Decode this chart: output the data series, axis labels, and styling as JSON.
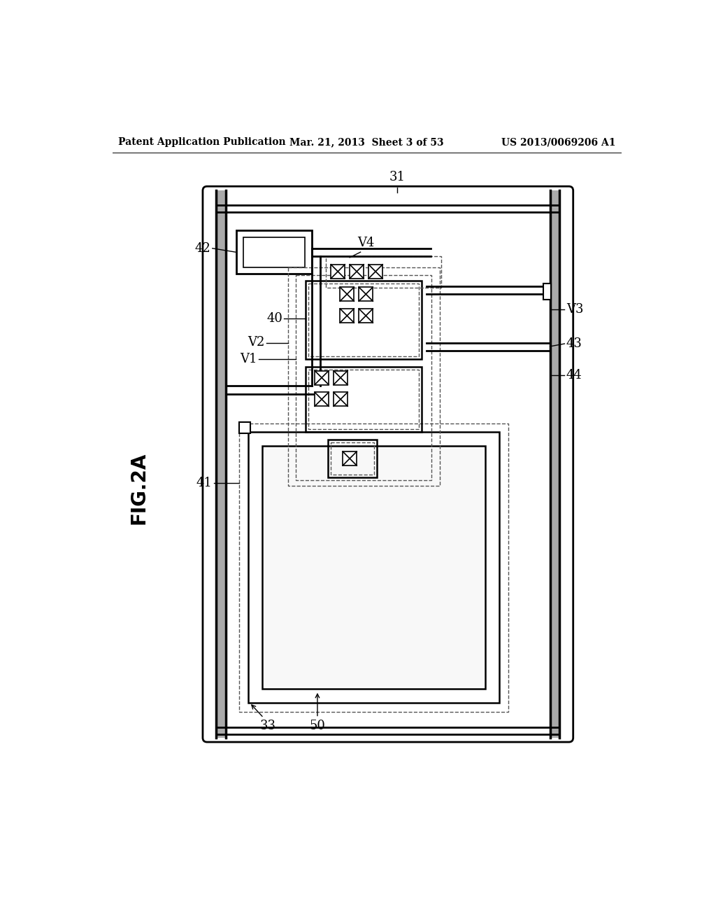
{
  "header_left": "Patent Application Publication",
  "header_mid": "Mar. 21, 2013  Sheet 3 of 53",
  "header_right": "US 2013/0069206 A1",
  "fig_label": "FIG.2A",
  "bg_color": "#ffffff",
  "lc": "#000000",
  "dc": "#555555"
}
